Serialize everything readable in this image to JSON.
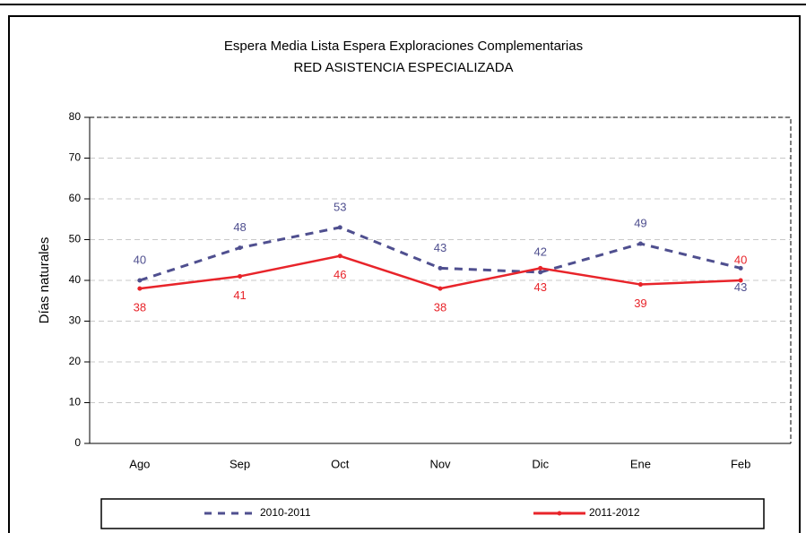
{
  "chart_data": {
    "type": "line",
    "title": "Espera Media Lista Espera Exploraciones Complementarias",
    "subtitle": "RED ASISTENCIA ESPECIALIZADA",
    "y_label": "Días naturales",
    "categories": [
      "Ago",
      "Sep",
      "Oct",
      "Nov",
      "Dic",
      "Ene",
      "Feb"
    ],
    "series": [
      {
        "name": "2010-2011",
        "color": "#4f4f8f",
        "dashed": true,
        "values": [
          40,
          48,
          53,
          43,
          42,
          49,
          43
        ]
      },
      {
        "name": "2011-2012",
        "color": "#e8242a",
        "dashed": false,
        "values": [
          38,
          41,
          46,
          38,
          43,
          39,
          40
        ]
      }
    ],
    "ylim": [
      0,
      80
    ],
    "yticks": [
      0,
      10,
      20,
      30,
      40,
      50,
      60,
      70,
      80
    ],
    "grid": true,
    "legend": "bottom"
  }
}
